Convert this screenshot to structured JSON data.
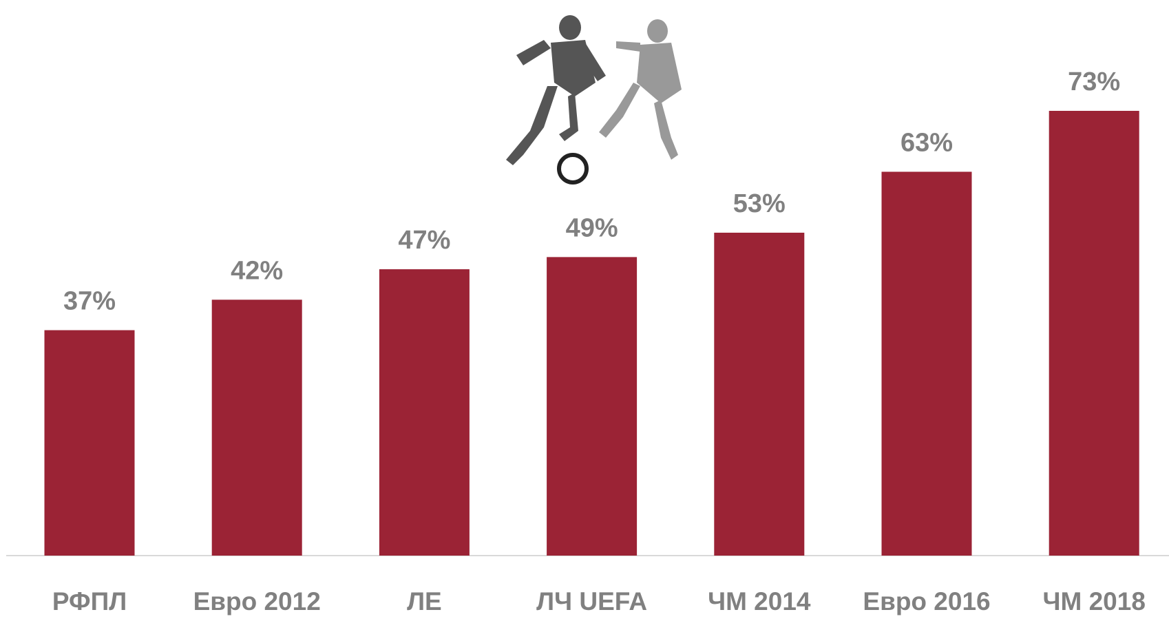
{
  "chart_data": {
    "type": "bar",
    "categories": [
      "РФПЛ",
      "Евро 2012",
      "ЛЕ",
      "ЛЧ UEFA",
      "ЧМ 2014",
      "Евро 2016",
      "ЧМ 2018"
    ],
    "values": [
      37,
      42,
      47,
      49,
      53,
      63,
      73
    ],
    "value_labels": [
      "37%",
      "42%",
      "47%",
      "49%",
      "53%",
      "63%",
      "73%"
    ],
    "color": "#9b2335"
  }
}
